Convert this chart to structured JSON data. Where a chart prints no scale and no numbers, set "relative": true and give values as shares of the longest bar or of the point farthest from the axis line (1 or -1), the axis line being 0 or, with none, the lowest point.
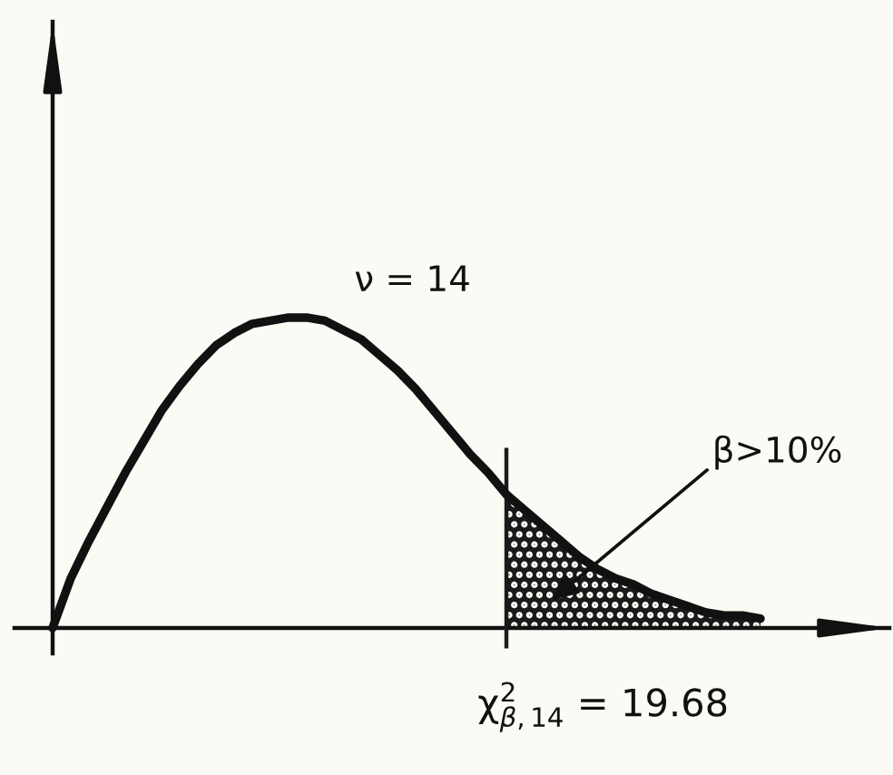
{
  "chart_data": {
    "type": "line",
    "relative": true,
    "categories": [
      null,
      null,
      null,
      null,
      null,
      null,
      null,
      null,
      null,
      null,
      null,
      null,
      null,
      null,
      null,
      null,
      null,
      null,
      null,
      null,
      null,
      null,
      null,
      null,
      null,
      null,
      null,
      null,
      null,
      null,
      null,
      null,
      null,
      null,
      null,
      null,
      null,
      null,
      null,
      null
    ],
    "series": [
      {
        "color": "#111111",
        "values": [
          0,
          0.16,
          0.28,
          0.39,
          0.5,
          0.6,
          0.7,
          0.78,
          0.85,
          0.91,
          0.95,
          0.98,
          0.99,
          1,
          1,
          0.99,
          0.96,
          0.93,
          0.88,
          0.83,
          0.77,
          0.7,
          0.63,
          0.56,
          0.5,
          0.43,
          0.38,
          0.33,
          0.28,
          0.23,
          0.19,
          0.16,
          0.14,
          0.11,
          0.09,
          0.07,
          0.05,
          0.04,
          0.04,
          0.03
        ]
      },
      {
        "type": "area",
        "color": "#1a1a1a",
        "values": [
          null,
          null,
          null,
          null,
          null,
          null,
          null,
          null,
          null,
          null,
          null,
          null,
          null,
          null,
          null,
          null,
          null,
          null,
          null,
          null,
          null,
          null,
          null,
          null,
          null,
          0.43,
          0.38,
          0.33,
          0.28,
          0.23,
          0.19,
          0.16,
          0.14,
          0.11,
          0.09,
          0.07,
          0.05,
          0.04,
          0.04,
          0.03
        ]
      }
    ],
    "annotations": [
      "ν = 14",
      "β>10%",
      "χ$^{2}$$_{β,14}$ = 19.68"
    ]
  }
}
